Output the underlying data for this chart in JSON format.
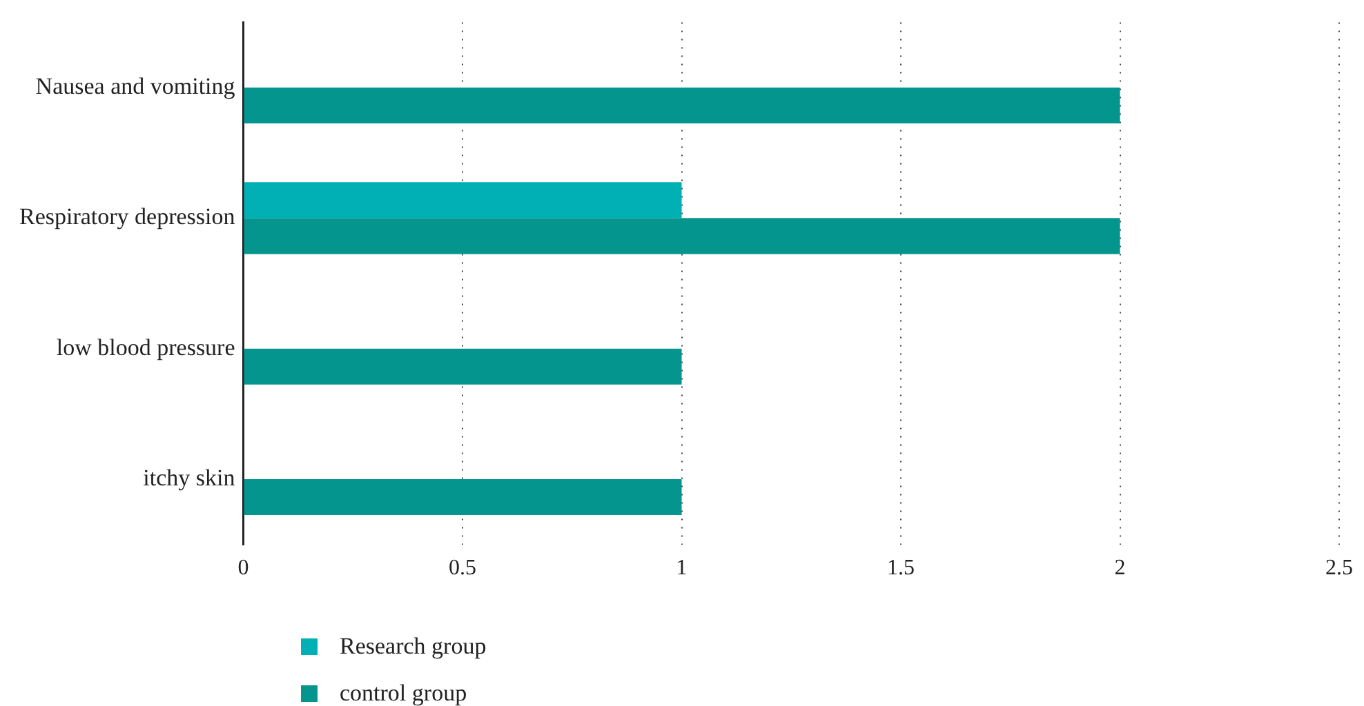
{
  "chart_data": {
    "type": "bar",
    "orientation": "horizontal",
    "categories": [
      "Nausea and vomiting",
      "Respiratory depression",
      "low blood pressure",
      "itchy skin"
    ],
    "series": [
      {
        "name": "Research group",
        "color": "#00b0b4",
        "values": [
          0,
          1,
          0,
          0
        ]
      },
      {
        "name": "control group",
        "color": "#05958f",
        "values": [
          2,
          2,
          1,
          1
        ]
      }
    ],
    "xlim": [
      0,
      2.5
    ],
    "xticks": [
      0,
      0.5,
      1,
      1.5,
      2,
      2.5
    ],
    "grid": "x",
    "legend": "bottom left"
  }
}
